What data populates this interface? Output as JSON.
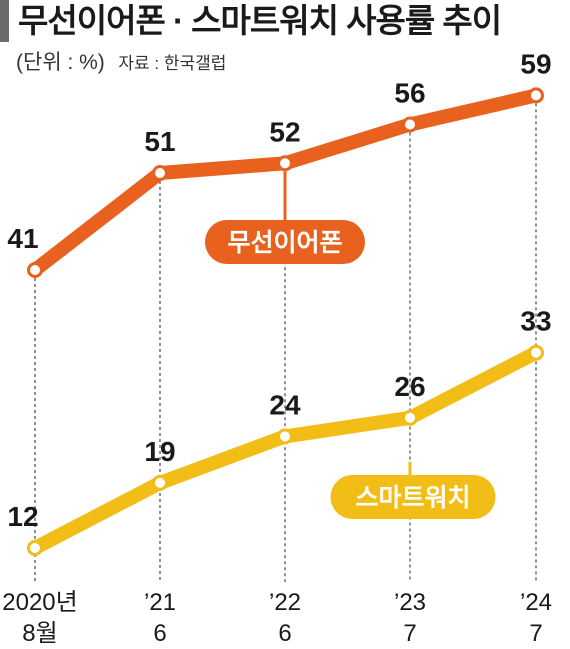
{
  "header": {
    "title": "무선이어폰 · 스마트워치 사용률 추이",
    "unit": "(단위 : %)",
    "source": "자료 : 한국갤럽"
  },
  "chart_data": {
    "type": "line",
    "categories": [
      {
        "top": "2020년",
        "bottom": "8월"
      },
      {
        "top": "’21",
        "bottom": "6"
      },
      {
        "top": "’22",
        "bottom": "6"
      },
      {
        "top": "’23",
        "bottom": "7"
      },
      {
        "top": "’24",
        "bottom": "7"
      }
    ],
    "series": [
      {
        "name": "무선이어폰",
        "values": [
          41,
          51,
          52,
          56,
          59
        ],
        "color": "#e8611e"
      },
      {
        "name": "스마트워치",
        "values": [
          12,
          19,
          24,
          26,
          33
        ],
        "color": "#f2bd16"
      }
    ],
    "ylim": [
      0,
      70
    ],
    "grid": false,
    "xlabel": "",
    "ylabel": "",
    "legend": "callout labels attached to each line"
  }
}
